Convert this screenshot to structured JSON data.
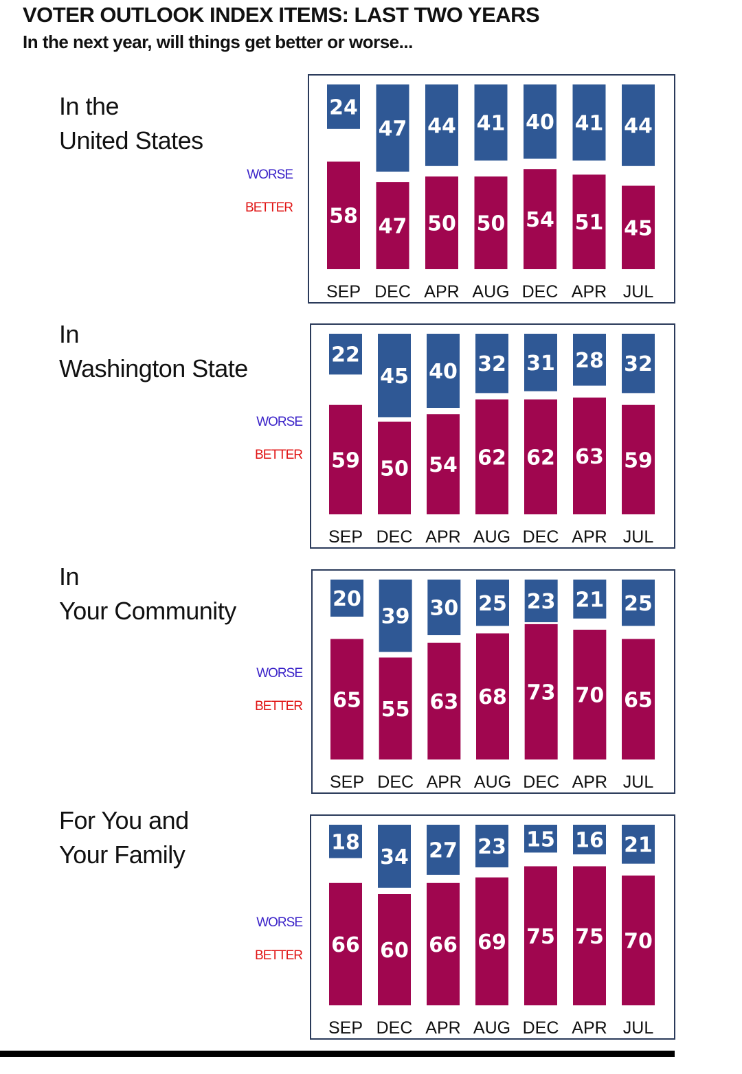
{
  "header": {
    "title": "VOTER OUTLOOK INDEX ITEMS: LAST TWO YEARS",
    "subtitle": "In the next year, will things get better or worse..."
  },
  "colors": {
    "worse": "#2f5895",
    "better": "#a0064f",
    "legend_worse": "#3a22c8",
    "legend_better": "#e01414"
  },
  "legend": {
    "worse": "WORSE",
    "better": "BETTER"
  },
  "chart_data": [
    {
      "type": "bar",
      "label_lines": [
        "In the",
        "United States"
      ],
      "categories": [
        "SEP",
        "DEC",
        "APR",
        "AUG",
        "DEC",
        "APR",
        "JUL"
      ],
      "series": [
        {
          "name": "WORSE",
          "values": [
            24,
            47,
            44,
            41,
            40,
            41,
            44
          ]
        },
        {
          "name": "BETTER",
          "values": [
            58,
            47,
            50,
            50,
            54,
            51,
            45
          ]
        }
      ],
      "ylim": [
        0,
        100
      ],
      "grid": false
    },
    {
      "type": "bar",
      "label_lines": [
        "In",
        "Washington State"
      ],
      "categories": [
        "SEP",
        "DEC",
        "APR",
        "AUG",
        "DEC",
        "APR",
        "JUL"
      ],
      "series": [
        {
          "name": "WORSE",
          "values": [
            22,
            45,
            40,
            32,
            31,
            28,
            32
          ]
        },
        {
          "name": "BETTER",
          "values": [
            59,
            50,
            54,
            62,
            62,
            63,
            59
          ]
        }
      ],
      "ylim": [
        0,
        100
      ],
      "grid": false
    },
    {
      "type": "bar",
      "label_lines": [
        "In",
        "Your Community"
      ],
      "categories": [
        "SEP",
        "DEC",
        "APR",
        "AUG",
        "DEC",
        "APR",
        "JUL"
      ],
      "series": [
        {
          "name": "WORSE",
          "values": [
            20,
            39,
            30,
            25,
            23,
            21,
            25
          ]
        },
        {
          "name": "BETTER",
          "values": [
            65,
            55,
            63,
            68,
            73,
            70,
            65
          ]
        }
      ],
      "ylim": [
        0,
        100
      ],
      "grid": false
    },
    {
      "type": "bar",
      "label_lines": [
        "For You and",
        "Your Family"
      ],
      "categories": [
        "SEP",
        "DEC",
        "APR",
        "AUG",
        "DEC",
        "APR",
        "JUL"
      ],
      "series": [
        {
          "name": "WORSE",
          "values": [
            18,
            34,
            27,
            23,
            15,
            16,
            21
          ]
        },
        {
          "name": "BETTER",
          "values": [
            66,
            60,
            66,
            69,
            75,
            75,
            70
          ]
        }
      ],
      "ylim": [
        0,
        100
      ],
      "grid": false
    }
  ]
}
